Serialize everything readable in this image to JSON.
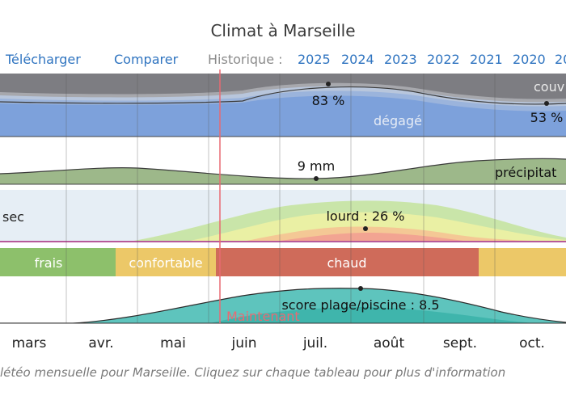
{
  "header": {
    "title": "Climat à Marseille"
  },
  "toolbar": {
    "download_label": "Télécharger",
    "compare_label": "Comparer",
    "history_label": "Historique :",
    "years": [
      "2025",
      "2024",
      "2023",
      "2022",
      "2021",
      "2020",
      "20"
    ]
  },
  "chart_data": [
    {
      "type": "area",
      "name": "clouds",
      "categories": [
        "mars",
        "avr.",
        "mai",
        "juin",
        "juil.",
        "août",
        "sept.",
        "oct."
      ],
      "labels": {
        "clear": "dégagé",
        "overcast": "couv"
      },
      "annotations": [
        {
          "label": "83 %",
          "month": "juil.",
          "value": 83
        },
        {
          "label": "53 %",
          "month": "oct.",
          "value": 53
        }
      ]
    },
    {
      "type": "area",
      "name": "precipitation",
      "label": "précipitat",
      "annotations": [
        {
          "label": "9 mm",
          "month": "juil.",
          "value": 9
        }
      ]
    },
    {
      "type": "area",
      "name": "humidity",
      "labels": {
        "dry": "sec"
      },
      "annotations": [
        {
          "label": "lourd : 26 %",
          "month": "août",
          "value": 26
        }
      ]
    },
    {
      "type": "bar",
      "name": "temperature-comfort",
      "segments": [
        {
          "label": "frais",
          "color": "#8dc06b"
        },
        {
          "label": "confortable",
          "color": "#ecc868"
        },
        {
          "label": "chaud",
          "color": "#cf6b5a"
        },
        {
          "label": "",
          "color": "#ecc868"
        }
      ]
    },
    {
      "type": "area",
      "name": "beach-pool-score",
      "annotations": [
        {
          "label": "score plage/piscine : 8.5",
          "month": "août",
          "value": 8.5
        }
      ],
      "now_label": "Maintenant"
    }
  ],
  "months": [
    "mars",
    "avr.",
    "mai",
    "juin",
    "juil.",
    "août",
    "sept.",
    "oct."
  ],
  "caption": "létéo mensuelle pour Marseille. Cliquez sur chaque tableau pour plus d'information"
}
